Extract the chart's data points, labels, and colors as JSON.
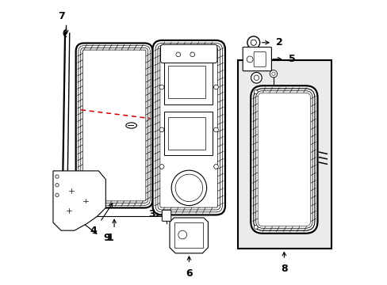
{
  "bg_color": "#ffffff",
  "line_color": "#000000",
  "red_dashed_color": "#cc0000",
  "figsize": [
    4.89,
    3.6
  ],
  "dpi": 100
}
